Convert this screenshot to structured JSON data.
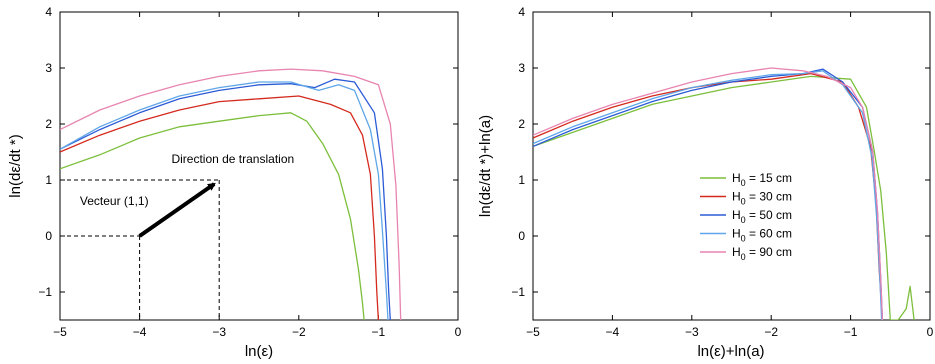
{
  "chart_data": [
    {
      "type": "line",
      "xlabel": "ln(ε)",
      "ylabel": "ln(dε/dt *)",
      "xlim": [
        -5,
        0
      ],
      "ylim": [
        -1.5,
        4
      ],
      "xticks": [
        -5,
        -4,
        -3,
        -2,
        -1,
        0
      ],
      "yticks": [
        -1,
        0,
        1,
        2,
        3,
        4
      ],
      "xtick_labels": [
        "−5",
        "−4",
        "−3",
        "−2",
        "−1",
        "0"
      ],
      "ytick_labels": [
        "−1",
        "0",
        "1",
        "2",
        "3",
        "4"
      ],
      "grid": false,
      "annotations": [
        {
          "text": "Direction de translation",
          "x": -3.6,
          "y": 1.3
        },
        {
          "text": "Vecteur (1,1)",
          "x": -4.75,
          "y": 0.55
        }
      ],
      "arrow": {
        "from": [
          -4,
          0
        ],
        "to": [
          -3,
          1
        ]
      },
      "guides": [
        {
          "from": [
            -5,
            1
          ],
          "to": [
            -3,
            1
          ]
        },
        {
          "from": [
            -3,
            1
          ],
          "to": [
            -3,
            -1.5
          ]
        },
        {
          "from": [
            -5,
            0
          ],
          "to": [
            -4,
            0
          ]
        },
        {
          "from": [
            -4,
            0
          ],
          "to": [
            -4,
            -1.5
          ]
        }
      ],
      "series": [
        {
          "color": "#7cbf3c",
          "x": [
            -5,
            -4.5,
            -4,
            -3.5,
            -3,
            -2.5,
            -2.1,
            -1.9,
            -1.7,
            -1.5,
            -1.35,
            -1.25,
            -1.2,
            -1.18
          ],
          "y": [
            1.2,
            1.45,
            1.75,
            1.95,
            2.05,
            2.15,
            2.2,
            2.05,
            1.65,
            1.1,
            0.3,
            -0.6,
            -1.2,
            -1.5
          ]
        },
        {
          "color": "#d42a1e",
          "x": [
            -5,
            -4.5,
            -4,
            -3.5,
            -3,
            -2.5,
            -2,
            -1.6,
            -1.35,
            -1.2,
            -1.1,
            -1.05,
            -1.02,
            -1.0
          ],
          "y": [
            1.5,
            1.8,
            2.05,
            2.25,
            2.4,
            2.45,
            2.5,
            2.35,
            2.2,
            1.8,
            1.1,
            0.0,
            -1.0,
            -1.5
          ]
        },
        {
          "color": "#2c5bd6",
          "x": [
            -5,
            -4.5,
            -4,
            -3.5,
            -3,
            -2.5,
            -2.1,
            -1.8,
            -1.55,
            -1.3,
            -1.05,
            -0.95,
            -0.9,
            -0.87,
            -0.85
          ],
          "y": [
            1.55,
            1.9,
            2.2,
            2.45,
            2.6,
            2.7,
            2.72,
            2.65,
            2.8,
            2.75,
            2.2,
            1.2,
            0.0,
            -1.0,
            -1.5
          ]
        },
        {
          "color": "#5fa6e8",
          "x": [
            -5,
            -4.5,
            -4,
            -3.5,
            -3,
            -2.5,
            -2.1,
            -1.75,
            -1.5,
            -1.3,
            -1.1,
            -1.0,
            -0.95,
            -0.9,
            -0.88
          ],
          "y": [
            1.55,
            1.95,
            2.25,
            2.5,
            2.65,
            2.75,
            2.75,
            2.6,
            2.7,
            2.6,
            1.9,
            1.1,
            0.1,
            -1.0,
            -1.5
          ]
        },
        {
          "color": "#e884b0",
          "x": [
            -5,
            -4.5,
            -4,
            -3.5,
            -3,
            -2.5,
            -2.1,
            -1.7,
            -1.3,
            -1.0,
            -0.85,
            -0.78,
            -0.74,
            -0.72
          ],
          "y": [
            1.9,
            2.25,
            2.5,
            2.7,
            2.85,
            2.95,
            2.98,
            2.95,
            2.85,
            2.7,
            2.0,
            0.9,
            -0.5,
            -1.5
          ]
        }
      ]
    },
    {
      "type": "line",
      "xlabel": "ln(ε)+ln(a)",
      "ylabel": "ln(dε/dt *)+ln(a)",
      "xlim": [
        -5,
        0
      ],
      "ylim": [
        -1.5,
        4
      ],
      "xticks": [
        -5,
        -4,
        -3,
        -2,
        -1,
        0
      ],
      "yticks": [
        -1,
        0,
        1,
        2,
        3,
        4
      ],
      "xtick_labels": [
        "−5",
        "−4",
        "−3",
        "−2",
        "−1",
        "0"
      ],
      "ytick_labels": [
        "−1",
        "0",
        "1",
        "2",
        "3",
        "4"
      ],
      "grid": false,
      "legend_position": "center-right",
      "series": [
        {
          "name": "H",
          "sub": "0",
          "suffix": " = 15 cm",
          "color": "#7cbf3c",
          "x": [
            -5,
            -4.5,
            -4,
            -3.5,
            -3,
            -2.5,
            -2,
            -1.5,
            -1.0,
            -0.8,
            -0.7,
            -0.62,
            -0.55,
            -0.5,
            -0.4,
            -0.3,
            -0.25,
            -0.2
          ],
          "y": [
            1.6,
            1.85,
            2.1,
            2.35,
            2.5,
            2.65,
            2.75,
            2.85,
            2.8,
            2.3,
            1.5,
            0.8,
            -0.3,
            -1.5,
            -1.5,
            -1.3,
            -0.9,
            -1.5
          ]
        },
        {
          "name": "H",
          "sub": "0",
          "suffix": " = 30 cm",
          "color": "#d42a1e",
          "x": [
            -5,
            -4.5,
            -4,
            -3.5,
            -3,
            -2.5,
            -2,
            -1.5,
            -1.1,
            -0.9,
            -0.75,
            -0.68,
            -0.64,
            -0.6
          ],
          "y": [
            1.75,
            2.05,
            2.3,
            2.5,
            2.65,
            2.75,
            2.8,
            2.9,
            2.75,
            2.3,
            1.6,
            0.6,
            -0.6,
            -1.5
          ]
        },
        {
          "name": "H",
          "sub": "0",
          "suffix": " = 50 cm",
          "color": "#2c5bd6",
          "x": [
            -5,
            -4.5,
            -4,
            -3.5,
            -3,
            -2.5,
            -2,
            -1.6,
            -1.35,
            -1.1,
            -0.85,
            -0.72,
            -0.66,
            -0.62,
            -0.6
          ],
          "y": [
            1.6,
            1.9,
            2.15,
            2.4,
            2.6,
            2.75,
            2.85,
            2.9,
            2.98,
            2.75,
            2.3,
            1.5,
            0.4,
            -0.8,
            -1.5
          ]
        },
        {
          "name": "H",
          "sub": "0",
          "suffix": " = 60 cm",
          "color": "#5fa6e8",
          "x": [
            -5,
            -4.5,
            -4,
            -3.5,
            -3,
            -2.5,
            -2,
            -1.6,
            -1.35,
            -1.1,
            -0.85,
            -0.73,
            -0.67,
            -0.63,
            -0.61
          ],
          "y": [
            1.65,
            1.95,
            2.2,
            2.45,
            2.65,
            2.78,
            2.88,
            2.9,
            2.95,
            2.7,
            2.2,
            1.4,
            0.3,
            -0.8,
            -1.5
          ]
        },
        {
          "name": "H",
          "sub": "0",
          "suffix": " = 90 cm",
          "color": "#e884b0",
          "x": [
            -5,
            -4.5,
            -4,
            -3.5,
            -3,
            -2.5,
            -2,
            -1.6,
            -1.3,
            -1.0,
            -0.85,
            -0.72,
            -0.66,
            -0.62,
            -0.6
          ],
          "y": [
            1.8,
            2.1,
            2.35,
            2.55,
            2.75,
            2.9,
            3.0,
            2.95,
            2.85,
            2.65,
            2.3,
            1.5,
            0.4,
            -0.8,
            -1.5
          ]
        }
      ]
    }
  ]
}
